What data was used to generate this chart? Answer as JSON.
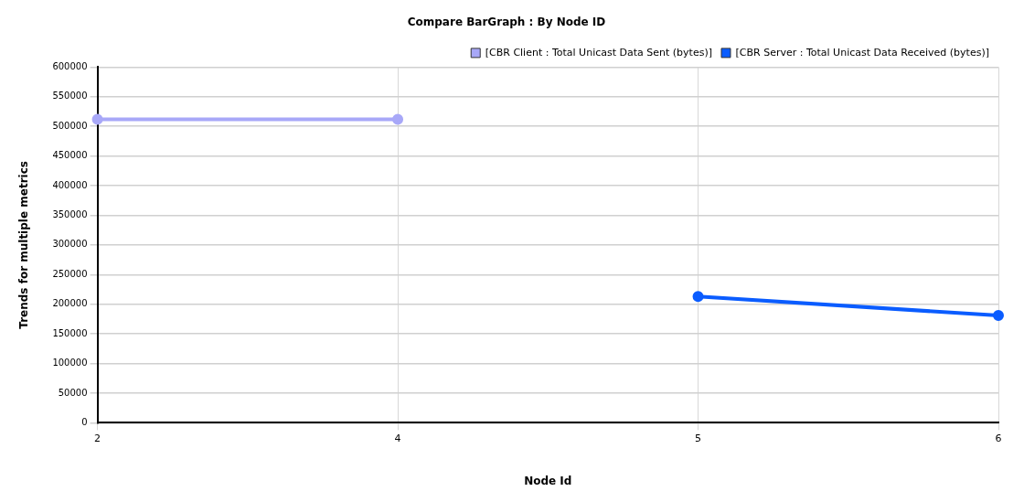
{
  "chart_data": {
    "type": "line",
    "title": "Compare BarGraph : By Node ID",
    "xlabel": "Node Id",
    "ylabel": "Trends for multiple metrics",
    "categories": [
      "2",
      "4",
      "5",
      "6"
    ],
    "series": [
      {
        "name": "[CBR Client : Total Unicast Data Sent (bytes)]",
        "color": "#a8a8f8",
        "values": [
          512000,
          512000,
          null,
          null
        ]
      },
      {
        "name": "[CBR Server : Total Unicast Data Received (bytes)]",
        "color": "#0a5cff",
        "values": [
          null,
          null,
          213000,
          181000
        ]
      }
    ],
    "ylim": [
      0,
      600000
    ],
    "yticks": [
      0,
      50000,
      100000,
      150000,
      200000,
      250000,
      300000,
      350000,
      400000,
      450000,
      500000,
      550000,
      600000
    ],
    "grid": true,
    "legend": "top right",
    "marker": "circle",
    "line_style": "solid"
  }
}
